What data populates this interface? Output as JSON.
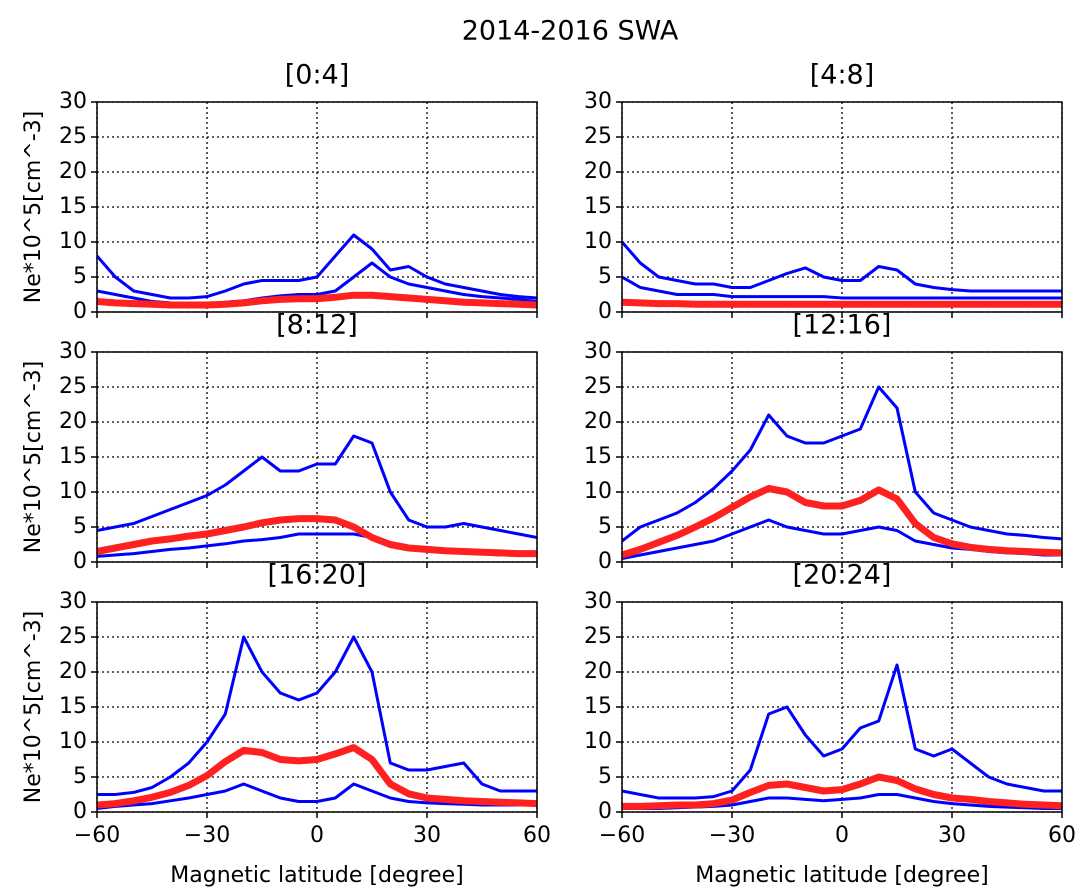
{
  "title": "2014-2016 SWA",
  "chart_data": [
    {
      "type": "line",
      "title": "[0:4]",
      "ylabel": "Ne*10^5[cm^-3]",
      "grid": true,
      "ylim": [
        0,
        30
      ],
      "yticks": [
        0,
        5,
        10,
        15,
        20,
        25,
        30
      ],
      "xlim": [
        -60,
        60
      ],
      "xticks": [
        {
          "value": -60,
          "label": "−60"
        },
        {
          "value": -30,
          "label": "−30"
        },
        0,
        30,
        60
      ],
      "x": [
        -60,
        -55,
        -50,
        -45,
        -40,
        -35,
        -30,
        -25,
        -20,
        -15,
        -10,
        -5,
        0,
        5,
        10,
        15,
        20,
        25,
        30,
        35,
        40,
        45,
        50,
        55,
        60
      ],
      "series": [
        {
          "color": "#0000ff",
          "values": [
            8,
            5,
            3,
            2.5,
            2,
            2,
            2.2,
            3,
            4,
            4.5,
            4.5,
            4.5,
            5,
            8,
            11,
            9,
            6,
            6.5,
            5,
            4,
            3.5,
            3,
            2.5,
            2.2,
            2
          ]
        },
        {
          "color": "#0000ff",
          "values": [
            3,
            2.5,
            2,
            1.5,
            1.3,
            1.2,
            1.2,
            1.4,
            1.6,
            2,
            2.3,
            2.5,
            2.5,
            3,
            5,
            7,
            5,
            4,
            3.5,
            3,
            2.5,
            2.2,
            2,
            1.8,
            1.5
          ]
        },
        {
          "color": "#ff2020",
          "values": [
            1.5,
            1.3,
            1.2,
            1.1,
            1,
            1,
            1,
            1.1,
            1.3,
            1.6,
            1.8,
            1.9,
            1.9,
            2.1,
            2.4,
            2.4,
            2.2,
            2,
            1.8,
            1.6,
            1.4,
            1.3,
            1.2,
            1.1,
            1
          ]
        }
      ]
    },
    {
      "type": "line",
      "title": "[4:8]",
      "grid": true,
      "ylim": [
        0,
        30
      ],
      "yticks": [
        0,
        5,
        10,
        15,
        20,
        25,
        30
      ],
      "xlim": [
        -60,
        60
      ],
      "xticks": [
        {
          "value": -60,
          "label": "−60"
        },
        {
          "value": -30,
          "label": "−30"
        },
        0,
        30,
        60
      ],
      "x": [
        -60,
        -55,
        -50,
        -45,
        -40,
        -35,
        -30,
        -25,
        -20,
        -15,
        -10,
        -5,
        0,
        5,
        10,
        15,
        20,
        25,
        30,
        35,
        40,
        45,
        50,
        55,
        60
      ],
      "series": [
        {
          "color": "#0000ff",
          "values": [
            10,
            7,
            5,
            4.5,
            4,
            4,
            3.5,
            3.5,
            4.5,
            5.5,
            6.3,
            5,
            4.5,
            4.5,
            6.5,
            6,
            4,
            3.5,
            3.2,
            3,
            3,
            3,
            3,
            3,
            3
          ]
        },
        {
          "color": "#0000ff",
          "values": [
            5,
            3.5,
            3,
            2.5,
            2.5,
            2.5,
            2.2,
            2.2,
            2.2,
            2.2,
            2.2,
            2.2,
            2,
            2,
            2,
            2,
            2,
            2,
            2,
            2,
            2,
            2,
            2,
            2,
            2
          ]
        },
        {
          "color": "#ff2020",
          "values": [
            1.4,
            1.3,
            1.2,
            1.2,
            1.1,
            1.1,
            1.1,
            1.1,
            1.1,
            1.1,
            1.1,
            1.1,
            1.1,
            1.1,
            1.1,
            1.1,
            1.1,
            1.1,
            1.1,
            1.1,
            1.1,
            1.1,
            1.1,
            1.1,
            1.1
          ]
        }
      ]
    },
    {
      "type": "line",
      "title": "[8:12]",
      "ylabel": "Ne*10^5[cm^-3]",
      "grid": true,
      "ylim": [
        0,
        30
      ],
      "yticks": [
        0,
        5,
        10,
        15,
        20,
        25,
        30
      ],
      "xlim": [
        -60,
        60
      ],
      "xticks": [
        {
          "value": -60,
          "label": "−60"
        },
        {
          "value": -30,
          "label": "−30"
        },
        0,
        30,
        60
      ],
      "x": [
        -60,
        -55,
        -50,
        -45,
        -40,
        -35,
        -30,
        -25,
        -20,
        -15,
        -10,
        -5,
        0,
        5,
        10,
        15,
        20,
        25,
        30,
        35,
        40,
        45,
        50,
        55,
        60
      ],
      "series": [
        {
          "color": "#0000ff",
          "values": [
            4.5,
            5,
            5.5,
            6.5,
            7.5,
            8.5,
            9.5,
            11,
            13,
            15,
            13,
            13,
            14,
            14,
            18,
            17,
            10,
            6,
            5,
            5,
            5.5,
            5,
            4.5,
            4,
            3.5
          ]
        },
        {
          "color": "#0000ff",
          "values": [
            0.8,
            1,
            1.2,
            1.5,
            1.8,
            2,
            2.3,
            2.6,
            3,
            3.2,
            3.5,
            4,
            4,
            4,
            4,
            3.5,
            2.5,
            2,
            1.8,
            1.5,
            1.3,
            1.2,
            1,
            1,
            1
          ]
        },
        {
          "color": "#ff2020",
          "values": [
            1.5,
            2,
            2.5,
            3,
            3.3,
            3.7,
            4,
            4.5,
            5,
            5.6,
            6,
            6.2,
            6.2,
            6,
            5,
            3.5,
            2.5,
            2,
            1.8,
            1.6,
            1.5,
            1.4,
            1.3,
            1.2,
            1.2
          ]
        }
      ]
    },
    {
      "type": "line",
      "title": "[12:16]",
      "grid": true,
      "ylim": [
        0,
        30
      ],
      "yticks": [
        0,
        5,
        10,
        15,
        20,
        25,
        30
      ],
      "xlim": [
        -60,
        60
      ],
      "xticks": [
        {
          "value": -60,
          "label": "−60"
        },
        {
          "value": -30,
          "label": "−30"
        },
        0,
        30,
        60
      ],
      "x": [
        -60,
        -55,
        -50,
        -45,
        -40,
        -35,
        -30,
        -25,
        -20,
        -15,
        -10,
        -5,
        0,
        5,
        10,
        15,
        20,
        25,
        30,
        35,
        40,
        45,
        50,
        55,
        60
      ],
      "series": [
        {
          "color": "#0000ff",
          "values": [
            3,
            5,
            6,
            7,
            8.5,
            10.5,
            13,
            16,
            21,
            18,
            17,
            17,
            18,
            19,
            25,
            22,
            10,
            7,
            6,
            5,
            4.5,
            4,
            3.8,
            3.5,
            3.3
          ]
        },
        {
          "color": "#0000ff",
          "values": [
            0.5,
            1,
            1.5,
            2,
            2.5,
            3,
            4,
            5,
            6,
            5,
            4.5,
            4,
            4,
            4.5,
            5,
            4.5,
            3,
            2.5,
            2,
            1.8,
            1.5,
            1.3,
            1.2,
            1,
            1
          ]
        },
        {
          "color": "#ff2020",
          "values": [
            1,
            1.8,
            2.8,
            3.8,
            5,
            6.3,
            7.8,
            9.3,
            10.5,
            10,
            8.5,
            8,
            8,
            8.8,
            10.3,
            9,
            5.5,
            3.5,
            2.6,
            2.1,
            1.8,
            1.6,
            1.5,
            1.4,
            1.3
          ]
        }
      ]
    },
    {
      "type": "line",
      "title": "[16:20]",
      "ylabel": "Ne*10^5[cm^-3]",
      "xlabel": "Magnetic latitude [degree]",
      "grid": true,
      "ylim": [
        0,
        30
      ],
      "yticks": [
        0,
        5,
        10,
        15,
        20,
        25,
        30
      ],
      "xlim": [
        -60,
        60
      ],
      "xticks": [
        {
          "value": -60,
          "label": "−60"
        },
        {
          "value": -30,
          "label": "−30"
        },
        0,
        30,
        60
      ],
      "x": [
        -60,
        -55,
        -50,
        -45,
        -40,
        -35,
        -30,
        -25,
        -20,
        -15,
        -10,
        -5,
        0,
        5,
        10,
        15,
        20,
        25,
        30,
        35,
        40,
        45,
        50,
        55,
        60
      ],
      "series": [
        {
          "color": "#0000ff",
          "values": [
            2.5,
            2.5,
            2.8,
            3.5,
            5,
            7,
            10,
            14,
            25,
            20,
            17,
            16,
            17,
            20,
            25,
            20,
            7,
            6,
            6,
            6.5,
            7,
            4,
            3,
            3,
            3
          ]
        },
        {
          "color": "#0000ff",
          "values": [
            0.5,
            0.8,
            1,
            1.2,
            1.6,
            2,
            2.5,
            3,
            4,
            3,
            2,
            1.5,
            1.5,
            2,
            4,
            3,
            2,
            1.5,
            1.3,
            1.2,
            1.1,
            1,
            1,
            1,
            1
          ]
        },
        {
          "color": "#ff2020",
          "values": [
            1,
            1.2,
            1.6,
            2.1,
            2.8,
            3.8,
            5.2,
            7.2,
            8.8,
            8.5,
            7.5,
            7.3,
            7.5,
            8.3,
            9.2,
            7.5,
            4,
            2.6,
            2,
            1.8,
            1.6,
            1.5,
            1.4,
            1.3,
            1.2
          ]
        }
      ]
    },
    {
      "type": "line",
      "title": "[20:24]",
      "xlabel": "Magnetic latitude [degree]",
      "grid": true,
      "ylim": [
        0,
        30
      ],
      "yticks": [
        0,
        5,
        10,
        15,
        20,
        25,
        30
      ],
      "xlim": [
        -60,
        60
      ],
      "xticks": [
        {
          "value": -60,
          "label": "−60"
        },
        {
          "value": -30,
          "label": "−30"
        },
        0,
        30,
        60
      ],
      "x": [
        -60,
        -55,
        -50,
        -45,
        -40,
        -35,
        -30,
        -25,
        -20,
        -15,
        -10,
        -5,
        0,
        5,
        10,
        15,
        20,
        25,
        30,
        35,
        40,
        45,
        50,
        55,
        60
      ],
      "series": [
        {
          "color": "#0000ff",
          "values": [
            3,
            2.5,
            2,
            2,
            2,
            2.2,
            3,
            6,
            14,
            15,
            11,
            8,
            9,
            12,
            13,
            21,
            9,
            8,
            9,
            7,
            5,
            4,
            3.5,
            3,
            3
          ]
        },
        {
          "color": "#0000ff",
          "values": [
            0.5,
            0.5,
            0.5,
            0.6,
            0.7,
            0.8,
            1,
            1.5,
            2,
            2,
            1.8,
            1.6,
            1.8,
            2,
            2.5,
            2.5,
            2,
            1.5,
            1.2,
            1,
            0.8,
            0.7,
            0.6,
            0.5,
            0.5
          ]
        },
        {
          "color": "#ff2020",
          "values": [
            0.8,
            0.8,
            0.9,
            1,
            1,
            1.2,
            1.7,
            2.8,
            3.8,
            4,
            3.5,
            3,
            3.2,
            4,
            5,
            4.5,
            3.3,
            2.5,
            2,
            1.8,
            1.5,
            1.3,
            1.1,
            1,
            0.9
          ]
        }
      ]
    }
  ]
}
